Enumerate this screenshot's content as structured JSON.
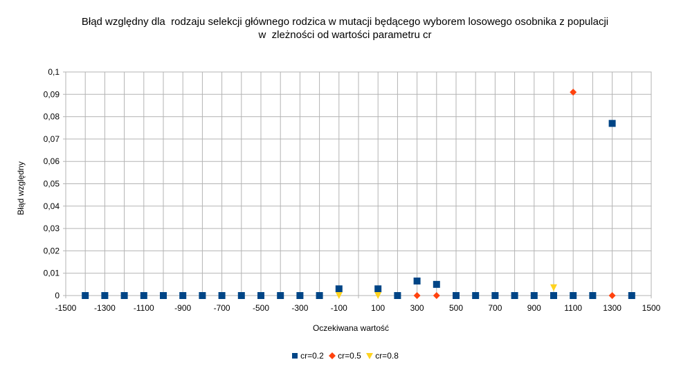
{
  "chart_data": {
    "type": "scatter",
    "title_lines": [
      "Błąd względny dla  rodzaju selekcji głównego rodzica w mutacji będącego wyborem losowego osobnika z populacji",
      "w  zleżności od wartości parametru cr"
    ],
    "xlabel": "Oczekiwana wartość",
    "ylabel": "Błąd względny",
    "xlim": [
      -1500,
      1500
    ],
    "ylim": [
      0,
      0.1
    ],
    "x_ticks": [
      -1500,
      -1300,
      -1100,
      -900,
      -700,
      -500,
      -300,
      -100,
      100,
      300,
      500,
      700,
      900,
      1100,
      1300,
      1500
    ],
    "x_tick_labels": [
      "-1500",
      "-1300",
      "-1100",
      "-900",
      "-700",
      "-500",
      "-300",
      "-100",
      "100",
      "300",
      "500",
      "700",
      "900",
      "1100",
      "1300",
      "1500"
    ],
    "y_ticks": [
      0,
      0.01,
      0.02,
      0.03,
      0.04,
      0.05,
      0.06,
      0.07,
      0.08,
      0.09,
      0.1
    ],
    "y_tick_labels": [
      "0",
      "0,01",
      "0,02",
      "0,03",
      "0,04",
      "0,05",
      "0,06",
      "0,07",
      "0,08",
      "0,09",
      "0,1"
    ],
    "x_grid_step": 100,
    "grid": true,
    "legend_position": "bottom",
    "series": [
      {
        "name": "cr=0.2",
        "marker": "square",
        "color": "#004586",
        "points": [
          [
            -1400,
            0
          ],
          [
            -1300,
            0
          ],
          [
            -1200,
            0
          ],
          [
            -1100,
            0
          ],
          [
            -1000,
            0
          ],
          [
            -900,
            0
          ],
          [
            -800,
            0
          ],
          [
            -700,
            0
          ],
          [
            -600,
            0
          ],
          [
            -500,
            0
          ],
          [
            -400,
            0
          ],
          [
            -300,
            0
          ],
          [
            -200,
            0
          ],
          [
            -100,
            0.003
          ],
          [
            100,
            0.003
          ],
          [
            200,
            0
          ],
          [
            300,
            0.0065
          ],
          [
            400,
            0.005
          ],
          [
            500,
            0
          ],
          [
            600,
            0
          ],
          [
            700,
            0
          ],
          [
            800,
            0
          ],
          [
            900,
            0
          ],
          [
            1000,
            0
          ],
          [
            1100,
            0
          ],
          [
            1200,
            0
          ],
          [
            1300,
            0.077
          ],
          [
            1400,
            0
          ]
        ]
      },
      {
        "name": "cr=0.5",
        "marker": "diamond",
        "color": "#ff420e",
        "points": [
          [
            300,
            0
          ],
          [
            400,
            0
          ],
          [
            1100,
            0.091
          ],
          [
            1300,
            0
          ]
        ]
      },
      {
        "name": "cr=0.8",
        "marker": "triangle-down",
        "color": "#ffd320",
        "points": [
          [
            -100,
            0
          ],
          [
            100,
            0
          ],
          [
            1000,
            0.0035
          ]
        ]
      }
    ]
  }
}
